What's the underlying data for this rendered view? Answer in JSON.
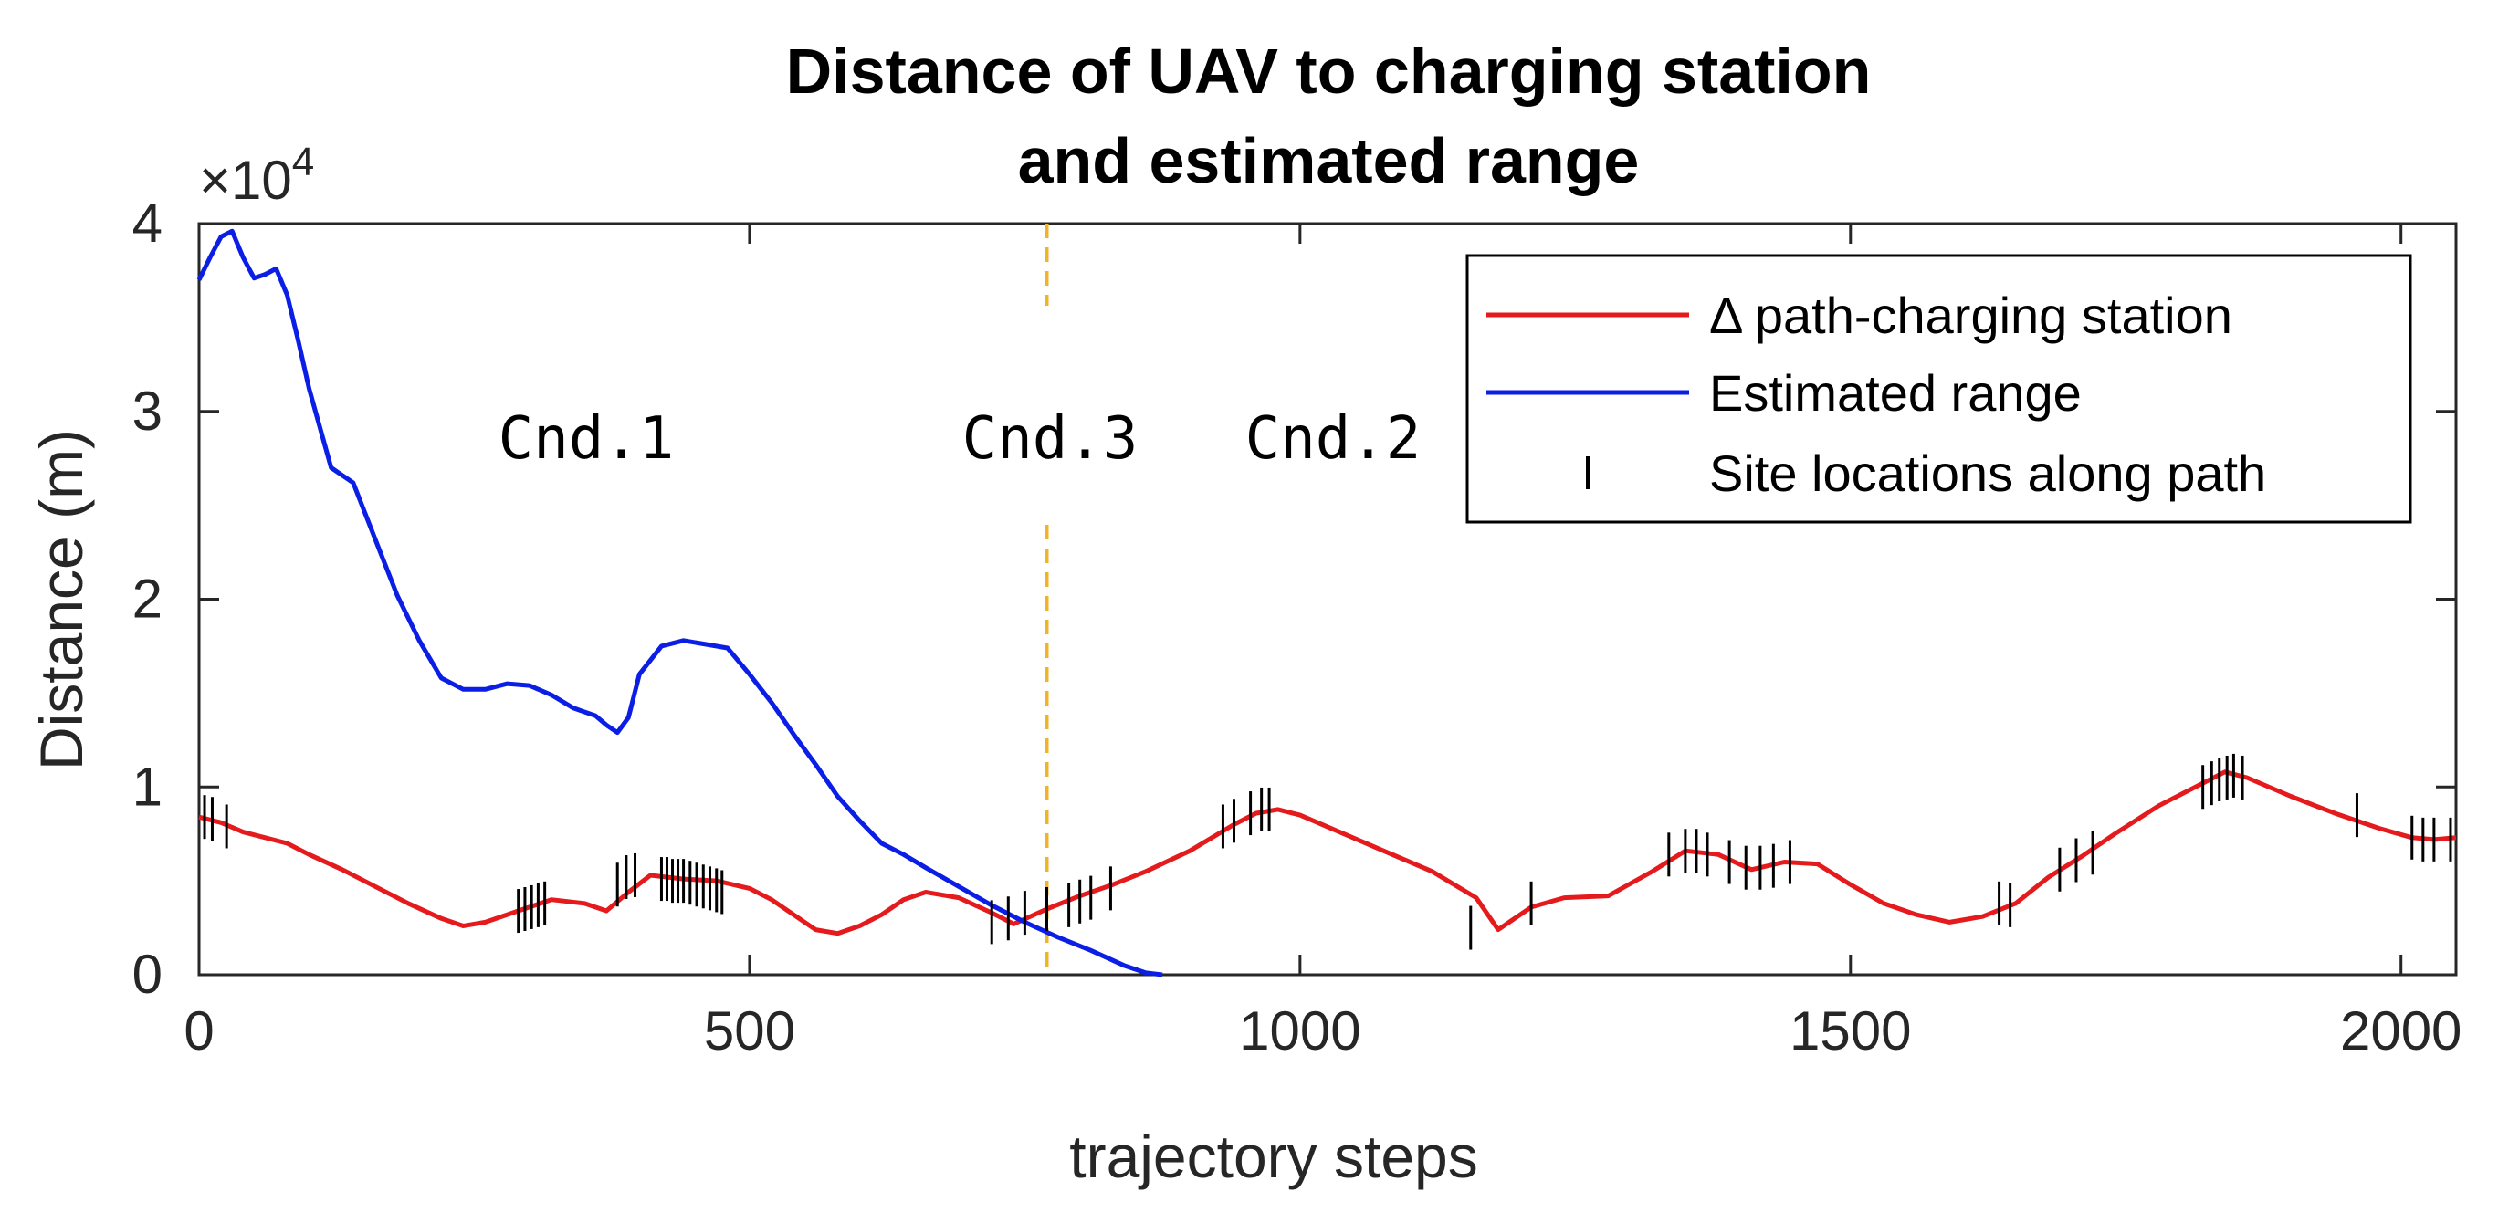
{
  "chart_data": {
    "type": "line",
    "title": [
      "Distance of UAV to charging station",
      "and estimated range"
    ],
    "xlabel": "trajectory steps",
    "ylabel": "Distance (m)",
    "y_exponent_label": "×10",
    "y_exponent_power": "4",
    "xlim": [
      0,
      2050
    ],
    "ylim": [
      0,
      4
    ],
    "xticks": [
      0,
      500,
      1000,
      1500,
      2000
    ],
    "xtick_labels": [
      "0",
      "500",
      "1000",
      "1500",
      "2000"
    ],
    "yticks": [
      0,
      1,
      2,
      3,
      4
    ],
    "ytick_labels": [
      "0",
      "1",
      "2",
      "3",
      "4"
    ],
    "grid": false,
    "legend_position": "top-right",
    "series": [
      {
        "name": "Δ path-charging station",
        "color": "#e41a1c",
        "x": [
          0,
          20,
          40,
          60,
          80,
          100,
          130,
          160,
          190,
          220,
          240,
          260,
          290,
          320,
          350,
          370,
          390,
          410,
          440,
          470,
          500,
          520,
          540,
          560,
          580,
          600,
          620,
          640,
          660,
          690,
          720,
          740,
          770,
          800,
          830,
          860,
          900,
          940,
          960,
          980,
          1000,
          1040,
          1080,
          1120,
          1160,
          1180,
          1210,
          1240,
          1280,
          1320,
          1350,
          1380,
          1410,
          1440,
          1470,
          1500,
          1530,
          1560,
          1590,
          1620,
          1650,
          1680,
          1710,
          1740,
          1780,
          1820,
          1840,
          1860,
          1900,
          1940,
          1980,
          2010,
          2030,
          2050
        ],
        "y": [
          0.84,
          0.81,
          0.76,
          0.73,
          0.7,
          0.64,
          0.56,
          0.47,
          0.38,
          0.3,
          0.26,
          0.28,
          0.34,
          0.4,
          0.38,
          0.34,
          0.44,
          0.53,
          0.51,
          0.5,
          0.46,
          0.4,
          0.32,
          0.24,
          0.22,
          0.26,
          0.32,
          0.4,
          0.44,
          0.41,
          0.33,
          0.27,
          0.35,
          0.42,
          0.48,
          0.55,
          0.66,
          0.8,
          0.86,
          0.88,
          0.85,
          0.75,
          0.65,
          0.55,
          0.41,
          0.24,
          0.36,
          0.41,
          0.42,
          0.55,
          0.66,
          0.64,
          0.56,
          0.6,
          0.59,
          0.48,
          0.38,
          0.32,
          0.28,
          0.31,
          0.38,
          0.52,
          0.63,
          0.75,
          0.9,
          1.02,
          1.08,
          1.05,
          0.95,
          0.86,
          0.78,
          0.73,
          0.72,
          0.73
        ]
      },
      {
        "name": "Estimated range",
        "color": "#0a1ee6",
        "x": [
          0,
          10,
          20,
          30,
          40,
          50,
          60,
          70,
          80,
          90,
          100,
          120,
          140,
          160,
          180,
          200,
          220,
          240,
          260,
          280,
          300,
          320,
          340,
          360,
          370,
          380,
          390,
          400,
          420,
          440,
          460,
          480,
          500,
          520,
          540,
          560,
          580,
          600,
          620,
          640,
          660,
          690,
          720,
          750,
          780,
          810,
          840,
          860,
          875
        ],
        "y": [
          3.7,
          3.82,
          3.93,
          3.96,
          3.82,
          3.71,
          3.73,
          3.76,
          3.62,
          3.38,
          3.12,
          2.7,
          2.62,
          2.32,
          2.02,
          1.78,
          1.58,
          1.52,
          1.52,
          1.55,
          1.54,
          1.49,
          1.42,
          1.38,
          1.33,
          1.29,
          1.37,
          1.6,
          1.75,
          1.78,
          1.76,
          1.74,
          1.6,
          1.45,
          1.28,
          1.12,
          0.95,
          0.82,
          0.7,
          0.64,
          0.57,
          0.47,
          0.37,
          0.28,
          0.2,
          0.13,
          0.05,
          0.01,
          0.0
        ]
      },
      {
        "name": "Site locations along path",
        "color": "#000000",
        "marker": "|",
        "x": [
          5,
          12,
          25,
          290,
          296,
          302,
          308,
          314,
          380,
          388,
          396,
          420,
          425,
          430,
          435,
          440,
          446,
          452,
          458,
          464,
          470,
          475,
          720,
          735,
          750,
          770,
          790,
          800,
          810,
          828,
          930,
          940,
          955,
          965,
          972,
          1155,
          1210,
          1335,
          1350,
          1360,
          1370,
          1390,
          1405,
          1418,
          1430,
          1445,
          1635,
          1645,
          1690,
          1705,
          1720,
          1820,
          1828,
          1835,
          1842,
          1848,
          1856,
          1960,
          2010,
          2020,
          2030,
          2045
        ],
        "y": [
          0.84,
          0.83,
          0.79,
          0.34,
          0.35,
          0.36,
          0.37,
          0.38,
          0.48,
          0.52,
          0.53,
          0.51,
          0.51,
          0.5,
          0.5,
          0.5,
          0.49,
          0.48,
          0.47,
          0.46,
          0.45,
          0.44,
          0.28,
          0.3,
          0.33,
          0.35,
          0.37,
          0.39,
          0.41,
          0.46,
          0.79,
          0.82,
          0.86,
          0.88,
          0.88,
          0.25,
          0.38,
          0.64,
          0.66,
          0.66,
          0.64,
          0.6,
          0.57,
          0.57,
          0.58,
          0.6,
          0.38,
          0.37,
          0.56,
          0.61,
          0.65,
          1.0,
          1.02,
          1.04,
          1.05,
          1.06,
          1.05,
          0.85,
          0.73,
          0.72,
          0.72,
          0.72
        ]
      }
    ],
    "vertical_line": {
      "x": 770,
      "color": "#f0b428",
      "style": "dashed"
    },
    "annotations": [
      {
        "text": "Cnd.1",
        "x": 355,
        "y": 2.85
      },
      {
        "text": "Cnd.3",
        "x": 770,
        "y": 2.85
      },
      {
        "text": "Cnd.2",
        "x": 1030,
        "y": 2.85
      }
    ]
  }
}
